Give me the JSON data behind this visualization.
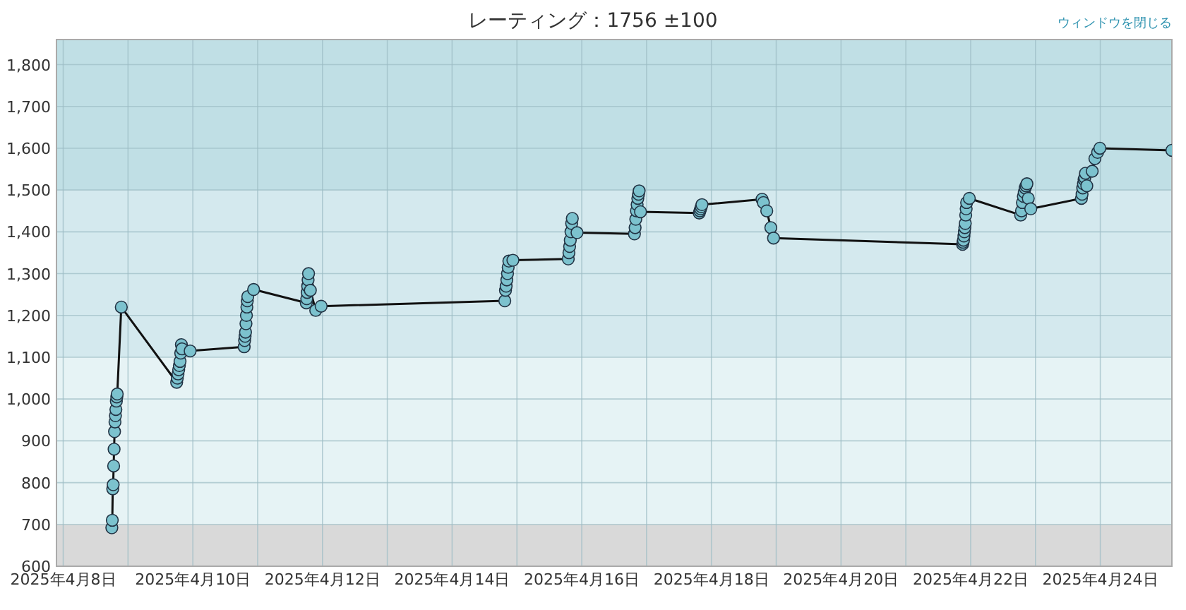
{
  "chart_data": {
    "type": "line",
    "title": "レーティング：1756 ±100",
    "annotations": [
      "ウィンドウを閉じる"
    ],
    "xlim": [
      "2025-04-07T21:30",
      "2025-04-25T02:30"
    ],
    "xticks": [
      {
        "value": "2025-04-08",
        "label": "2025年4月8日"
      },
      {
        "value": "2025-04-09",
        "label": null
      },
      {
        "value": "2025-04-10",
        "label": "2025年4月10日"
      },
      {
        "value": "2025-04-11",
        "label": null
      },
      {
        "value": "2025-04-12",
        "label": "2025年4月12日"
      },
      {
        "value": "2025-04-13",
        "label": null
      },
      {
        "value": "2025-04-14",
        "label": "2025年4月14日"
      },
      {
        "value": "2025-04-15",
        "label": null
      },
      {
        "value": "2025-04-16",
        "label": "2025年4月16日"
      },
      {
        "value": "2025-04-17",
        "label": null
      },
      {
        "value": "2025-04-18",
        "label": "2025年4月18日"
      },
      {
        "value": "2025-04-19",
        "label": null
      },
      {
        "value": "2025-04-20",
        "label": "2025年4月20日"
      },
      {
        "value": "2025-04-21",
        "label": null
      },
      {
        "value": "2025-04-22",
        "label": "2025年4月22日"
      },
      {
        "value": "2025-04-23",
        "label": null
      },
      {
        "value": "2025-04-24",
        "label": "2025年4月24日"
      }
    ],
    "ylim": [
      600,
      1860
    ],
    "yticks": [
      {
        "value": 600,
        "label": "600"
      },
      {
        "value": 700,
        "label": "700"
      },
      {
        "value": 800,
        "label": "800"
      },
      {
        "value": 900,
        "label": "900"
      },
      {
        "value": 1000,
        "label": "1,000"
      },
      {
        "value": 1100,
        "label": "1,100"
      },
      {
        "value": 1200,
        "label": "1,200"
      },
      {
        "value": 1300,
        "label": "1,300"
      },
      {
        "value": 1400,
        "label": "1,400"
      },
      {
        "value": 1500,
        "label": "1,500"
      },
      {
        "value": 1600,
        "label": "1,600"
      },
      {
        "value": 1700,
        "label": "1,700"
      },
      {
        "value": 1800,
        "label": "1,800"
      }
    ],
    "grid": true,
    "marker": "circle",
    "line_style": "solid",
    "bands": [
      {
        "axis": "y",
        "from": 600,
        "to": 700,
        "color": "#d9d9d9"
      },
      {
        "axis": "y",
        "from": 700,
        "to": 1100,
        "color": "#e6f3f5"
      },
      {
        "axis": "y",
        "from": 1100,
        "to": 1500,
        "color": "#d4e9ee"
      },
      {
        "axis": "y",
        "from": 1500,
        "to": 1860,
        "color": "#c0dfe5"
      }
    ],
    "series": [
      {
        "color": "#7cc2ce",
        "x": [
          "2025-04-08T18:00",
          "2025-04-08T18:10",
          "2025-04-08T18:20",
          "2025-04-08T18:30",
          "2025-04-08T18:40",
          "2025-04-08T18:50",
          "2025-04-08T19:00",
          "2025-04-08T19:10",
          "2025-04-08T19:20",
          "2025-04-08T19:30",
          "2025-04-08T19:40",
          "2025-04-08T19:50",
          "2025-04-08T20:00",
          "2025-04-08T21:30",
          "2025-04-09T18:00",
          "2025-04-09T18:15",
          "2025-04-09T18:30",
          "2025-04-09T18:45",
          "2025-04-09T19:00",
          "2025-04-09T19:15",
          "2025-04-09T19:30",
          "2025-04-09T19:45",
          "2025-04-09T20:00",
          "2025-04-09T23:00",
          "2025-04-10T19:00",
          "2025-04-10T19:10",
          "2025-04-10T19:20",
          "2025-04-10T19:30",
          "2025-04-10T19:40",
          "2025-04-10T19:50",
          "2025-04-10T20:00",
          "2025-04-10T20:10",
          "2025-04-10T20:20",
          "2025-04-10T22:30",
          "2025-04-11T18:00",
          "2025-04-11T18:10",
          "2025-04-11T18:20",
          "2025-04-11T18:30",
          "2025-04-11T18:40",
          "2025-04-11T18:50",
          "2025-04-11T19:30",
          "2025-04-11T21:30",
          "2025-04-11T23:30",
          "2025-04-14T19:30",
          "2025-04-14T19:45",
          "2025-04-14T20:00",
          "2025-04-14T20:15",
          "2025-04-14T20:30",
          "2025-04-14T20:45",
          "2025-04-14T21:00",
          "2025-04-14T22:30",
          "2025-04-15T19:00",
          "2025-04-15T19:15",
          "2025-04-15T19:30",
          "2025-04-15T19:45",
          "2025-04-15T20:00",
          "2025-04-15T20:15",
          "2025-04-15T20:30",
          "2025-04-15T22:15",
          "2025-04-16T19:30",
          "2025-04-16T19:45",
          "2025-04-16T20:00",
          "2025-04-16T20:15",
          "2025-04-16T20:30",
          "2025-04-16T20:45",
          "2025-04-16T21:00",
          "2025-04-16T21:15",
          "2025-04-16T21:45",
          "2025-04-17T19:30",
          "2025-04-17T19:45",
          "2025-04-17T20:00",
          "2025-04-17T20:15",
          "2025-04-17T20:30",
          "2025-04-18T18:45",
          "2025-04-18T19:15",
          "2025-04-18T20:30",
          "2025-04-18T22:00",
          "2025-04-18T23:00",
          "2025-04-21T21:00",
          "2025-04-21T21:10",
          "2025-04-21T21:20",
          "2025-04-21T21:30",
          "2025-04-21T21:40",
          "2025-04-21T21:50",
          "2025-04-21T22:00",
          "2025-04-21T22:10",
          "2025-04-21T22:20",
          "2025-04-21T22:30",
          "2025-04-21T23:30",
          "2025-04-22T18:30",
          "2025-04-22T18:50",
          "2025-04-22T19:10",
          "2025-04-22T19:30",
          "2025-04-22T19:50",
          "2025-04-22T20:10",
          "2025-04-22T20:30",
          "2025-04-22T20:50",
          "2025-04-22T21:20",
          "2025-04-22T22:15",
          "2025-04-23T17:00",
          "2025-04-23T17:15",
          "2025-04-23T17:30",
          "2025-04-23T17:45",
          "2025-04-23T18:00",
          "2025-04-23T18:15",
          "2025-04-23T18:30",
          "2025-04-23T19:00",
          "2025-04-23T21:00",
          "2025-04-23T22:00",
          "2025-04-23T23:00",
          "2025-04-23T23:50",
          "2025-04-25T02:30"
        ],
        "values": [
          692,
          710,
          785,
          795,
          840,
          880,
          922,
          945,
          960,
          975,
          995,
          1005,
          1012,
          1220,
          1040,
          1050,
          1060,
          1070,
          1080,
          1090,
          1110,
          1130,
          1120,
          1115,
          1125,
          1140,
          1150,
          1160,
          1180,
          1200,
          1220,
          1235,
          1245,
          1262,
          1230,
          1240,
          1255,
          1270,
          1285,
          1300,
          1260,
          1212,
          1222,
          1235,
          1260,
          1270,
          1285,
          1300,
          1315,
          1330,
          1332,
          1335,
          1350,
          1365,
          1380,
          1400,
          1420,
          1432,
          1398,
          1395,
          1410,
          1430,
          1450,
          1465,
          1480,
          1490,
          1498,
          1448,
          1445,
          1450,
          1455,
          1460,
          1465,
          1478,
          1470,
          1450,
          1410,
          1385,
          1370,
          1375,
          1380,
          1390,
          1400,
          1410,
          1420,
          1440,
          1455,
          1470,
          1480,
          1440,
          1450,
          1470,
          1485,
          1495,
          1505,
          1510,
          1515,
          1480,
          1455,
          1480,
          1490,
          1505,
          1515,
          1525,
          1530,
          1540,
          1510,
          1545,
          1575,
          1590,
          1600,
          1595
        ]
      }
    ]
  }
}
